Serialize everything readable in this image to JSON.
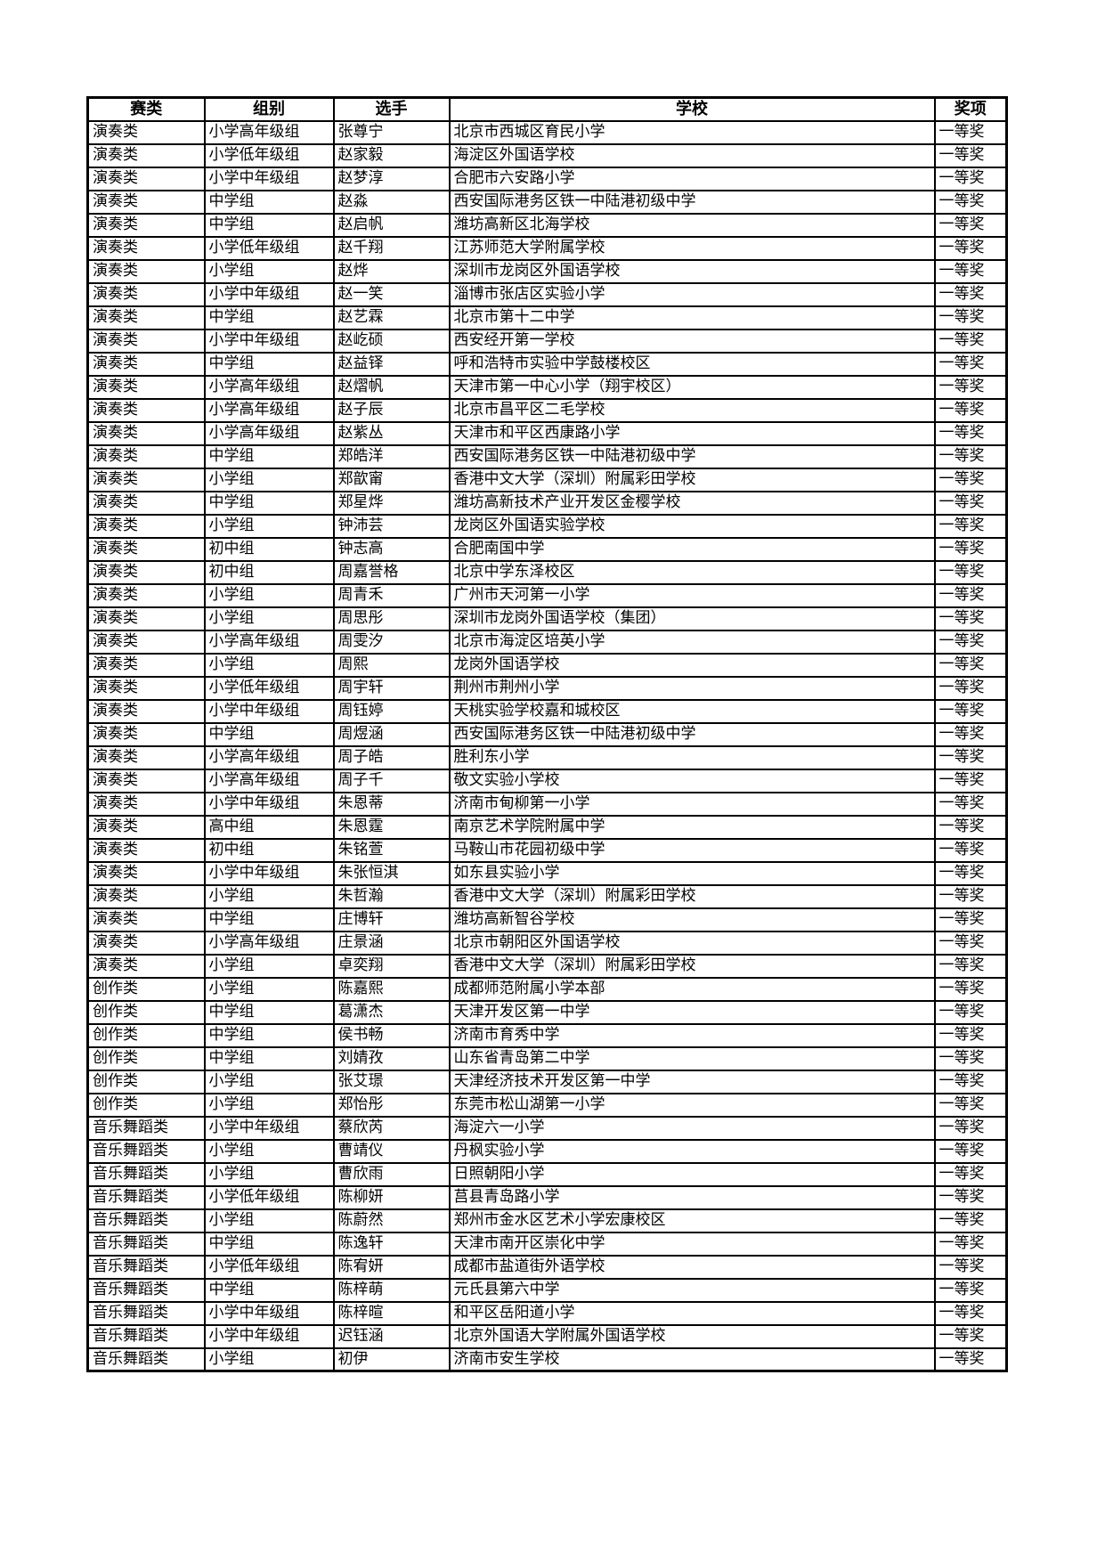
{
  "document": {
    "table": {
      "columns": [
        {
          "key": "category",
          "label": "赛类"
        },
        {
          "key": "group",
          "label": "组别"
        },
        {
          "key": "contestant",
          "label": "选手"
        },
        {
          "key": "school",
          "label": "学校"
        },
        {
          "key": "award",
          "label": "奖项"
        }
      ],
      "rows": [
        [
          "演奏类",
          "小学高年级组",
          "张尊宁",
          "北京市西城区育民小学",
          "一等奖"
        ],
        [
          "演奏类",
          "小学低年级组",
          "赵家毅",
          "海淀区外国语学校",
          "一等奖"
        ],
        [
          "演奏类",
          "小学中年级组",
          "赵梦淳",
          "合肥市六安路小学",
          "一等奖"
        ],
        [
          "演奏类",
          "中学组",
          "赵淼",
          "西安国际港务区铁一中陆港初级中学",
          "一等奖"
        ],
        [
          "演奏类",
          "中学组",
          "赵启帆",
          "潍坊高新区北海学校",
          "一等奖"
        ],
        [
          "演奏类",
          "小学低年级组",
          "赵千翔",
          "江苏师范大学附属学校",
          "一等奖"
        ],
        [
          "演奏类",
          "小学组",
          "赵烨",
          "深圳市龙岗区外国语学校",
          "一等奖"
        ],
        [
          "演奏类",
          "小学中年级组",
          "赵一笑",
          "淄博市张店区实验小学",
          "一等奖"
        ],
        [
          "演奏类",
          "中学组",
          "赵艺霖",
          "北京市第十二中学",
          "一等奖"
        ],
        [
          "演奏类",
          "小学中年级组",
          "赵屹硕",
          "西安经开第一学校",
          "一等奖"
        ],
        [
          "演奏类",
          "中学组",
          "赵益铎",
          "呼和浩特市实验中学鼓楼校区",
          "一等奖"
        ],
        [
          "演奏类",
          "小学高年级组",
          "赵熠帆",
          "天津市第一中心小学（翔宇校区）",
          "一等奖"
        ],
        [
          "演奏类",
          "小学高年级组",
          "赵子辰",
          "北京市昌平区二毛学校",
          "一等奖"
        ],
        [
          "演奏类",
          "小学高年级组",
          "赵紫丛",
          "天津市和平区西康路小学",
          "一等奖"
        ],
        [
          "演奏类",
          "中学组",
          "郑皓洋",
          "西安国际港务区铁一中陆港初级中学",
          "一等奖"
        ],
        [
          "演奏类",
          "小学组",
          "郑歆甯",
          "香港中文大学（深圳）附属彩田学校",
          "一等奖"
        ],
        [
          "演奏类",
          "中学组",
          "郑星烨",
          "潍坊高新技术产业开发区金樱学校",
          "一等奖"
        ],
        [
          "演奏类",
          "小学组",
          "钟沛芸",
          "龙岗区外国语实验学校",
          "一等奖"
        ],
        [
          "演奏类",
          "初中组",
          "钟志高",
          "合肥南国中学",
          "一等奖"
        ],
        [
          "演奏类",
          "初中组",
          "周嘉誉格",
          "北京中学东泽校区",
          "一等奖"
        ],
        [
          "演奏类",
          "小学组",
          "周青禾",
          "广州市天河第一小学",
          "一等奖"
        ],
        [
          "演奏类",
          "小学组",
          "周思彤",
          "深圳市龙岗外国语学校（集团）",
          "一等奖"
        ],
        [
          "演奏类",
          "小学高年级组",
          "周雯汐",
          "北京市海淀区培英小学",
          "一等奖"
        ],
        [
          "演奏类",
          "小学组",
          "周熙",
          "龙岗外国语学校",
          "一等奖"
        ],
        [
          "演奏类",
          "小学低年级组",
          "周宇轩",
          "荆州市荆州小学",
          "一等奖"
        ],
        [
          "演奏类",
          "小学中年级组",
          "周钰婷",
          "天桃实验学校嘉和城校区",
          "一等奖"
        ],
        [
          "演奏类",
          "中学组",
          "周煜涵",
          "西安国际港务区铁一中陆港初级中学",
          "一等奖"
        ],
        [
          "演奏类",
          "小学高年级组",
          "周子皓",
          "胜利东小学",
          "一等奖"
        ],
        [
          "演奏类",
          "小学高年级组",
          "周子千",
          "敬文实验小学校",
          "一等奖"
        ],
        [
          "演奏类",
          "小学中年级组",
          "朱恩蒂",
          "济南市甸柳第一小学",
          "一等奖"
        ],
        [
          "演奏类",
          "高中组",
          "朱恩霆",
          "南京艺术学院附属中学",
          "一等奖"
        ],
        [
          "演奏类",
          "初中组",
          "朱铭萱",
          "马鞍山市花园初级中学",
          "一等奖"
        ],
        [
          "演奏类",
          "小学中年级组",
          "朱张恒淇",
          "如东县实验小学",
          "一等奖"
        ],
        [
          "演奏类",
          "小学组",
          "朱哲瀚",
          "香港中文大学（深圳）附属彩田学校",
          "一等奖"
        ],
        [
          "演奏类",
          "中学组",
          "庄博轩",
          "潍坊高新智谷学校",
          "一等奖"
        ],
        [
          "演奏类",
          "小学高年级组",
          "庄景涵",
          "北京市朝阳区外国语学校",
          "一等奖"
        ],
        [
          "演奏类",
          "小学组",
          "卓奕翔",
          "香港中文大学（深圳）附属彩田学校",
          "一等奖"
        ],
        [
          "创作类",
          "小学组",
          "陈嘉熙",
          "成都师范附属小学本部",
          "一等奖"
        ],
        [
          "创作类",
          "中学组",
          "葛潇杰",
          "天津开发区第一中学",
          "一等奖"
        ],
        [
          "创作类",
          "中学组",
          "侯书畅",
          "济南市育秀中学",
          "一等奖"
        ],
        [
          "创作类",
          "中学组",
          "刘婧孜",
          "山东省青岛第二中学",
          "一等奖"
        ],
        [
          "创作类",
          "小学组",
          "张艾璟",
          "天津经济技术开发区第一中学",
          "一等奖"
        ],
        [
          "创作类",
          "小学组",
          "郑怡彤",
          "东莞市松山湖第一小学",
          "一等奖"
        ],
        [
          "音乐舞蹈类",
          "小学中年级组",
          "蔡欣芮",
          "海淀六一小学",
          "一等奖"
        ],
        [
          "音乐舞蹈类",
          "小学组",
          "曹靖仪",
          "丹枫实验小学",
          "一等奖"
        ],
        [
          "音乐舞蹈类",
          "小学组",
          "曹欣雨",
          "日照朝阳小学",
          "一等奖"
        ],
        [
          "音乐舞蹈类",
          "小学低年级组",
          "陈柳妍",
          "莒县青岛路小学",
          "一等奖"
        ],
        [
          "音乐舞蹈类",
          "小学组",
          "陈蔚然",
          "郑州市金水区艺术小学宏康校区",
          "一等奖"
        ],
        [
          "音乐舞蹈类",
          "中学组",
          "陈逸轩",
          "天津市南开区崇化中学",
          "一等奖"
        ],
        [
          "音乐舞蹈类",
          "小学低年级组",
          "陈宥妍",
          "成都市盐道街外语学校",
          "一等奖"
        ],
        [
          "音乐舞蹈类",
          "中学组",
          "陈梓萌",
          "元氏县第六中学",
          "一等奖"
        ],
        [
          "音乐舞蹈类",
          "小学中年级组",
          "陈梓暄",
          "和平区岳阳道小学",
          "一等奖"
        ],
        [
          "音乐舞蹈类",
          "小学中年级组",
          "迟钰涵",
          "北京外国语大学附属外国语学校",
          "一等奖"
        ],
        [
          "音乐舞蹈类",
          "小学组",
          "初伊",
          "济南市安生学校",
          "一等奖"
        ]
      ]
    }
  }
}
